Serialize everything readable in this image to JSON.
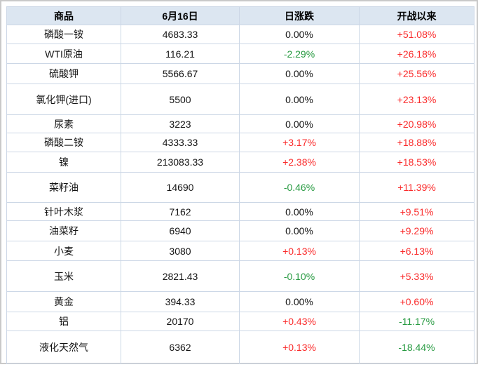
{
  "colors": {
    "up": "#fa2b2b",
    "down": "#279a41",
    "neutral": "#141414",
    "header_bg": "#dce6f1",
    "frame_border": "#c9c9c9"
  },
  "chart_data": {
    "type": "table",
    "columns": [
      "商品",
      "6月16日",
      "日涨跌",
      "开战以来"
    ],
    "rows": [
      [
        "磷酸一铵",
        "4683.33",
        "0.00%",
        "+51.08%"
      ],
      [
        "WTI原油",
        "116.21",
        "-2.29%",
        "+26.18%"
      ],
      [
        "硫酸钾",
        "5566.67",
        "0.00%",
        "+25.56%"
      ],
      [
        "氯化钾(进口)",
        "5500",
        "0.00%",
        "+23.13%"
      ],
      [
        "尿素",
        "3223",
        "0.00%",
        "+20.98%"
      ],
      [
        "磷酸二铵",
        "4333.33",
        "+3.17%",
        "+18.88%"
      ],
      [
        "镍",
        "213083.33",
        "+2.38%",
        "+18.53%"
      ],
      [
        "菜籽油",
        "14690",
        "-0.46%",
        "+11.39%"
      ],
      [
        "针叶木浆",
        "7162",
        "0.00%",
        "+9.51%"
      ],
      [
        "油菜籽",
        "6940",
        "0.00%",
        "+9.29%"
      ],
      [
        "小麦",
        "3080",
        "+0.13%",
        "+6.13%"
      ],
      [
        "玉米",
        "2821.43",
        "-0.10%",
        "+5.33%"
      ],
      [
        "黄金",
        "394.33",
        "0.00%",
        "+0.60%"
      ],
      [
        "铝",
        "20170",
        "+0.43%",
        "-11.17%"
      ],
      [
        "液化天然气",
        "6362",
        "+0.13%",
        "-18.44%"
      ]
    ]
  }
}
